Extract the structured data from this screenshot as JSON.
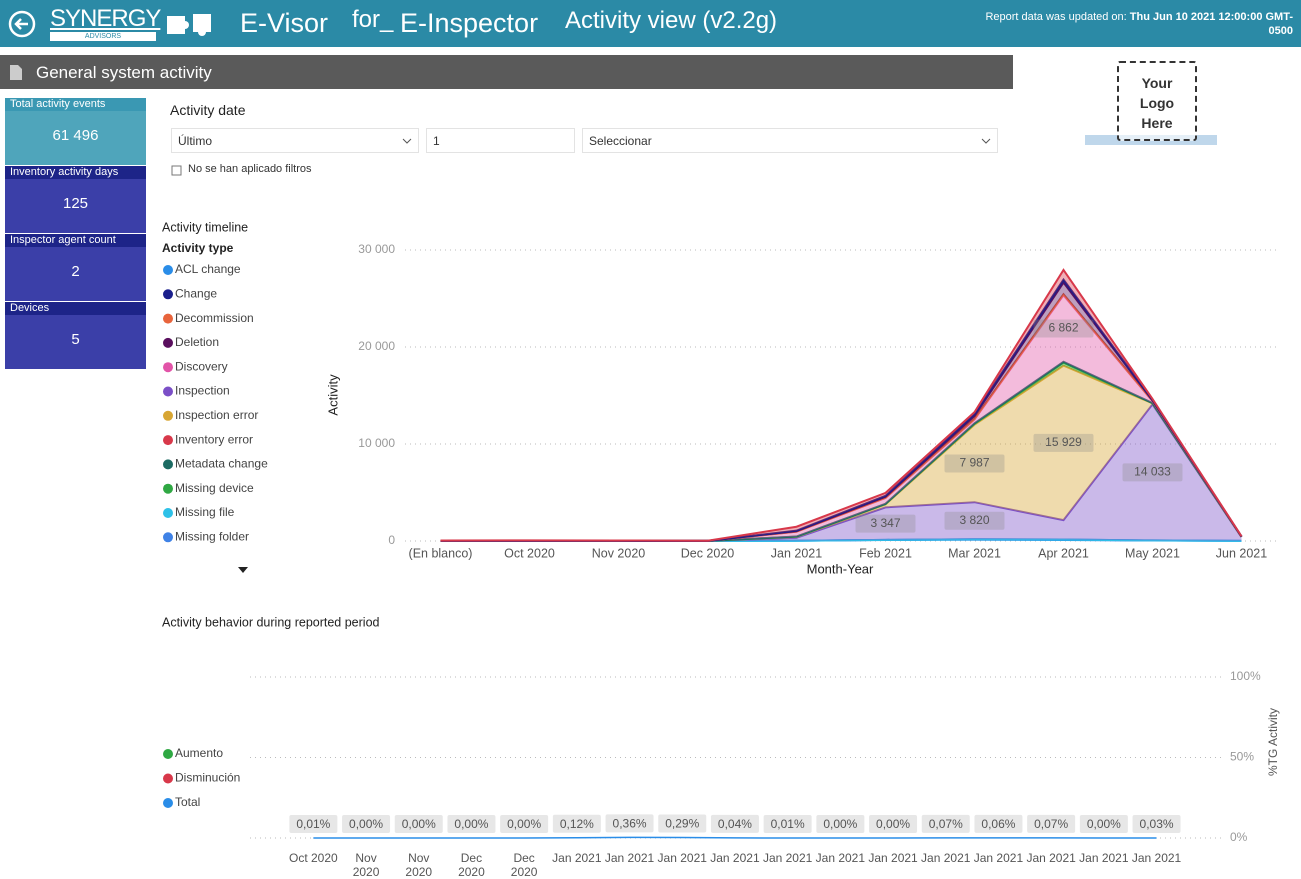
{
  "header": {
    "brand": "SYNERGY",
    "brand_sub": "ADVISORS",
    "product": "E-Visor",
    "connector": "for_",
    "target": "E-Inspector",
    "view": "Activity view (v2.2g)",
    "updated_label": "Report data was updated on:",
    "updated_value": "Thu Jun 10 2021 12:00:00 GMT-0500"
  },
  "page": {
    "title": "General system activity"
  },
  "cards": [
    {
      "label": "Total activity events",
      "value": "61 496"
    },
    {
      "label": "Inventory activity days",
      "value": "125"
    },
    {
      "label": "Inspector agent count",
      "value": "2"
    },
    {
      "label": "Devices",
      "value": "5"
    }
  ],
  "filter": {
    "title": "Activity date",
    "mode": "Último",
    "count": "1",
    "unit": "Seleccionar",
    "status": "No se han aplicado filtros"
  },
  "logo": {
    "text": "Your Logo Here"
  },
  "chart_data": [
    {
      "type": "area",
      "stacked": true,
      "title": "Activity timeline",
      "legend_title": "Activity type",
      "xlabel": "Month-Year",
      "ylabel": "Activity",
      "grid": true,
      "categories": [
        "(En blanco)",
        "Oct 2020",
        "Nov 2020",
        "Dec 2020",
        "Jan 2021",
        "Feb 2021",
        "Mar 2021",
        "Apr 2021",
        "May 2021",
        "Jun 2021"
      ],
      "ylim": [
        0,
        30000
      ],
      "yticks": [
        0,
        {
          "value": 10000,
          "label": "10 000"
        },
        {
          "value": 20000,
          "label": "20 000"
        },
        {
          "value": 30000,
          "label": "30 000"
        }
      ],
      "series": [
        {
          "name": "ACL change",
          "color": "#2a8de8",
          "values": [
            0,
            0,
            0,
            0,
            20,
            100,
            150,
            100,
            50,
            10
          ]
        },
        {
          "name": "Change",
          "color": "#1a1f8c",
          "values": [
            0,
            0,
            0,
            0,
            50,
            100,
            200,
            300,
            50,
            10
          ]
        },
        {
          "name": "Decommission",
          "color": "#e8643c",
          "values": [
            0,
            0,
            0,
            0,
            10,
            20,
            50,
            100,
            20,
            0
          ]
        },
        {
          "name": "Deletion",
          "color": "#5a0f5e",
          "values": [
            0,
            0,
            0,
            0,
            50,
            100,
            300,
            1200,
            50,
            10
          ]
        },
        {
          "name": "Discovery",
          "color": "#e254a8",
          "values": [
            0,
            0,
            0,
            0,
            500,
            600,
            400,
            6862,
            200,
            20
          ],
          "value_labels": [
            null,
            null,
            null,
            null,
            null,
            null,
            null,
            "6 862",
            null,
            null
          ]
        },
        {
          "name": "Inspection",
          "color": "#7b4fc7",
          "values": [
            20,
            30,
            20,
            10,
            300,
            3347,
            3820,
            2000,
            14033,
            400
          ],
          "value_labels": [
            null,
            null,
            null,
            null,
            null,
            "3 347",
            "3 820",
            null,
            "14 033",
            null
          ]
        },
        {
          "name": "Inspection error",
          "color": "#d8a633",
          "values": [
            0,
            0,
            0,
            0,
            100,
            300,
            7987,
            15929,
            100,
            20
          ],
          "value_labels": [
            null,
            null,
            null,
            null,
            null,
            null,
            "7 987",
            "15 929",
            null,
            null
          ]
        },
        {
          "name": "Inventory error",
          "color": "#d8384a",
          "values": [
            30,
            40,
            30,
            20,
            400,
            300,
            200,
            1000,
            100,
            20
          ]
        },
        {
          "name": "Metadata change",
          "color": "#1c6b63",
          "values": [
            0,
            0,
            0,
            0,
            10,
            20,
            50,
            100,
            10,
            0
          ]
        },
        {
          "name": "Missing device",
          "color": "#2fa843",
          "values": [
            0,
            0,
            0,
            0,
            20,
            50,
            100,
            300,
            20,
            0
          ]
        },
        {
          "name": "Missing file",
          "color": "#2ec1e8",
          "values": [
            0,
            0,
            0,
            0,
            0,
            0,
            0,
            0,
            0,
            0
          ]
        },
        {
          "name": "Missing folder",
          "color": "#3f82e6",
          "values": [
            0,
            0,
            0,
            0,
            10,
            20,
            30,
            50,
            10,
            0
          ]
        }
      ]
    },
    {
      "type": "line",
      "title": "Activity behavior during reported period",
      "ylabel": "%TG Activity",
      "grid": true,
      "categories": [
        "Oct 2020",
        "Nov 2020",
        "Nov 2020",
        "Dec 2020",
        "Dec 2020",
        "Jan 2021",
        "Jan 2021",
        "Jan 2021",
        "Jan 2021",
        "Jan 2021",
        "Jan 2021",
        "Jan 2021",
        "Jan 2021",
        "Jan 2021",
        "Jan 2021",
        "Jan 2021",
        "Jan 2021"
      ],
      "ylim": [
        0,
        100
      ],
      "yticks": [
        {
          "value": 0,
          "label": "0%"
        },
        {
          "value": 50,
          "label": "50%"
        },
        {
          "value": 100,
          "label": "100%"
        }
      ],
      "series": [
        {
          "name": "Aumento",
          "color": "#2fa843",
          "values": [
            null,
            null,
            null,
            null,
            null,
            null,
            null,
            null,
            null,
            null,
            null,
            null,
            null,
            null,
            null,
            null,
            null
          ]
        },
        {
          "name": "Disminución",
          "color": "#d8384a",
          "values": [
            null,
            null,
            null,
            null,
            null,
            null,
            null,
            null,
            null,
            null,
            null,
            null,
            null,
            null,
            null,
            null,
            null
          ]
        },
        {
          "name": "Total",
          "color": "#2a8de8",
          "values": [
            0.01,
            0,
            0,
            0,
            0,
            0.12,
            0.36,
            0.29,
            0.04,
            0.01,
            0,
            0,
            0.07,
            0.06,
            0.07,
            0,
            0.03
          ],
          "value_labels": [
            "0,01%",
            "0,00%",
            "0,00%",
            "0,00%",
            "0,00%",
            "0,12%",
            "0,36%",
            "0,29%",
            "0,04%",
            "0,01%",
            "0,00%",
            "0,00%",
            "0,07%",
            "0,06%",
            "0,07%",
            "0,00%",
            "0,03%"
          ]
        }
      ]
    }
  ]
}
